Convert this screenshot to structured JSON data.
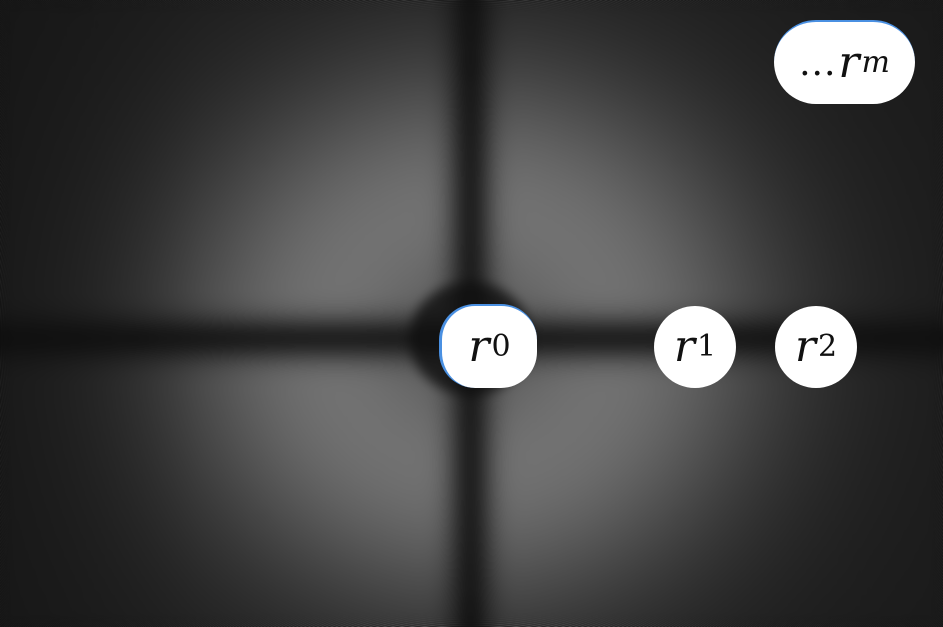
{
  "image": {
    "subject": "interference-fringe-pattern",
    "background_color": "#0c0c0c",
    "fringe_color": "#8a8a8a",
    "label_background": "#ffffff",
    "label_text_color": "#111111",
    "accent_color": "#4a90e2"
  },
  "labels": {
    "r0": {
      "symbol": "r",
      "subscript": "0"
    },
    "r1": {
      "symbol": "r",
      "subscript": "1"
    },
    "r2": {
      "symbol": "r",
      "subscript": "2"
    },
    "rm": {
      "prefix": "...",
      "symbol": "r",
      "subscript": "m"
    }
  }
}
